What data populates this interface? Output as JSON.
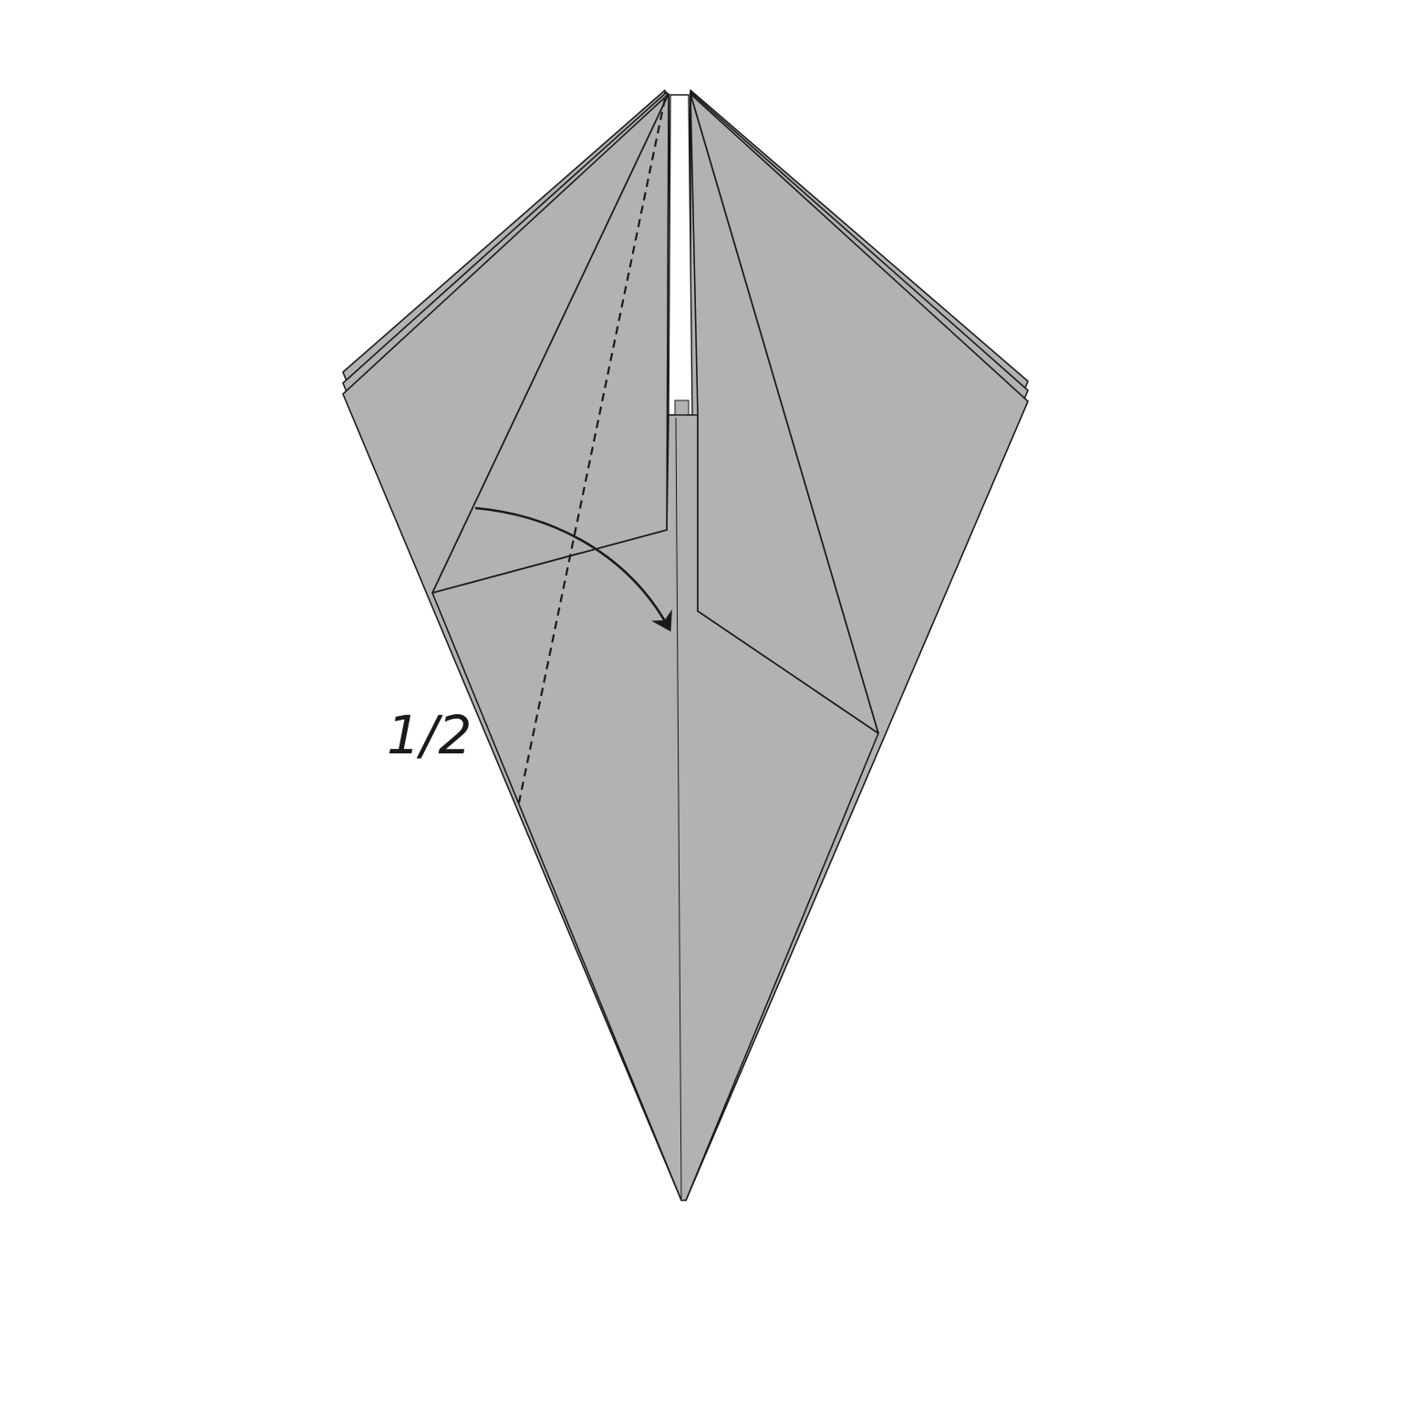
{
  "diagram": {
    "fold_label": "1/2",
    "colors": {
      "paper": "#b2b2b2",
      "line": "#1a1a1a",
      "background": "#ffffff"
    }
  }
}
